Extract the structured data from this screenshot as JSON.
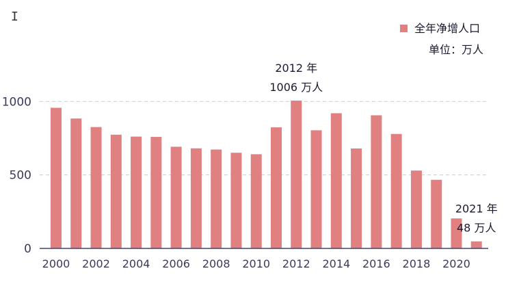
{
  "colors": {
    "bar": "#e08080",
    "axis": "#444466",
    "grid": "#cccccc",
    "text": "#1a1a2e",
    "tick": "#3a3a5a"
  },
  "cursor_icon": "text-cursor-icon",
  "chart_data": {
    "type": "bar",
    "categories": [
      "2000",
      "2001",
      "2002",
      "2003",
      "2004",
      "2005",
      "2006",
      "2007",
      "2008",
      "2009",
      "2010",
      "2011",
      "2012",
      "2013",
      "2014",
      "2015",
      "2016",
      "2017",
      "2018",
      "2019",
      "2020",
      "2021"
    ],
    "series": [
      {
        "name": "全年净增人口",
        "values": [
          957,
          884,
          826,
          774,
          761,
          759,
          692,
          681,
          673,
          651,
          641,
          824,
          1006,
          804,
          920,
          680,
          906,
          779,
          530,
          467,
          204,
          48
        ]
      }
    ],
    "x_tick_labels": [
      "2000",
      "2002",
      "2004",
      "2006",
      "2008",
      "2010",
      "2012",
      "2014",
      "2016",
      "2018",
      "2020"
    ],
    "y_ticks": [
      0,
      500,
      1000
    ],
    "y_tick_labels": [
      "0",
      "500",
      "1000"
    ],
    "ylim": [
      0,
      1006
    ],
    "grid": true,
    "legend": {
      "position": "top-right",
      "label": "全年净增人口"
    },
    "unit_note": "单位：万人",
    "annotations": [
      {
        "category": "2012",
        "line1": "2012 年",
        "line2": "1006 万人"
      },
      {
        "category": "2021",
        "line1": "2021 年",
        "line2": "48 万人"
      }
    ]
  }
}
